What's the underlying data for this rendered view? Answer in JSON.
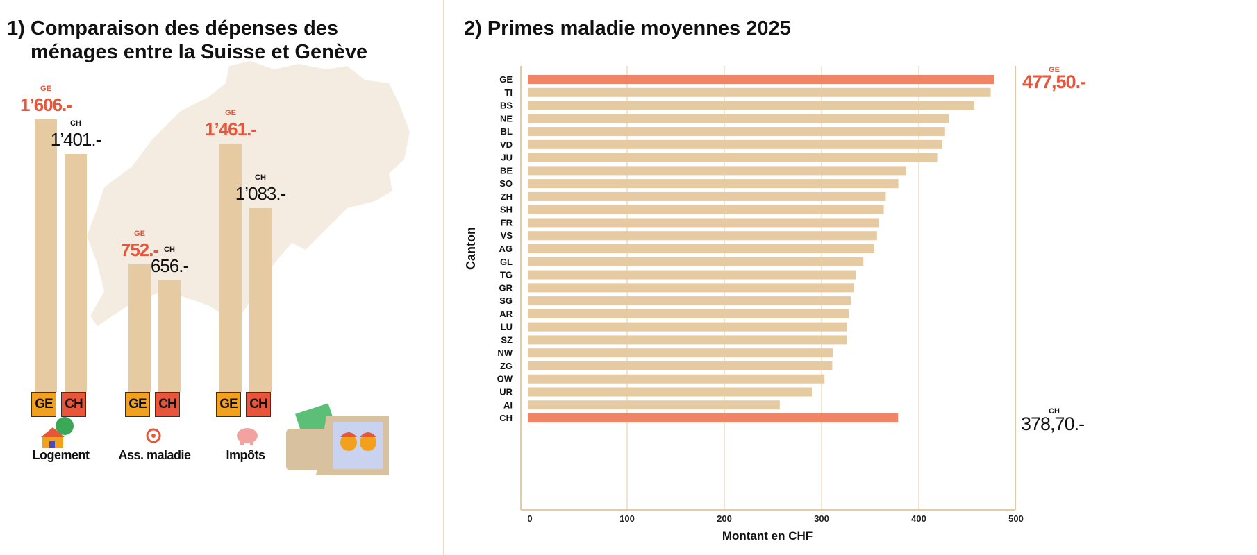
{
  "chart_data": [
    {
      "type": "bar",
      "title": "1) Comparaison des dépenses des ménages entre la Suisse et Genève",
      "title_lines": [
        "1) Comparaison des dépenses des",
        "ménages entre la Suisse et Genève"
      ],
      "categories": [
        "Logement",
        "Ass. maladie",
        "Impôts"
      ],
      "series": [
        {
          "name": "GE",
          "values": [
            1606,
            752,
            1461
          ],
          "labels": [
            "1’606.-",
            "752.-",
            "1’461.-"
          ],
          "color": "#f2a11f"
        },
        {
          "name": "CH",
          "values": [
            1401,
            656,
            1083
          ],
          "labels": [
            "1’401.-",
            "656.-",
            "1’083.-"
          ],
          "color": "#e8553a"
        }
      ],
      "series_value_color": {
        "GE": "#e8553a",
        "CH": "#111111"
      },
      "bar_color": "#e6caa2",
      "icons": [
        "house-icon",
        "stethoscope-icon",
        "piggy-bank-icon",
        "wallet-icon"
      ]
    },
    {
      "type": "bar",
      "orientation": "horizontal",
      "title": "2) Primes maladie moyennes 2025",
      "xlabel": "Montant en CHF",
      "ylabel": "Canton",
      "xlim": [
        0,
        500
      ],
      "xticks": [
        0,
        100,
        200,
        300,
        400,
        500
      ],
      "grid": true,
      "categories": [
        "GE",
        "TI",
        "BS",
        "NE",
        "BL",
        "VD",
        "JU",
        "BE",
        "SO",
        "ZH",
        "SH",
        "FR",
        "VS",
        "AG",
        "GL",
        "TG",
        "GR",
        "SG",
        "AR",
        "LU",
        "SZ",
        "NW",
        "ZG",
        "OW",
        "UR",
        "AI",
        "CH"
      ],
      "values": [
        477.5,
        474,
        457,
        431,
        427,
        424,
        419,
        387,
        379,
        366,
        364,
        359,
        357,
        354,
        343,
        335,
        333,
        330,
        328,
        326,
        326,
        312,
        311,
        303,
        290,
        257,
        378.7
      ],
      "highlight": [
        "GE",
        "CH"
      ],
      "bar_color": "#e6caa2",
      "highlight_color": "#ef8466",
      "annotations": [
        {
          "tag": "GE",
          "text": "477,50.-",
          "color": "#e8553a"
        },
        {
          "tag": "CH",
          "text": "378,70.-",
          "color": "#111111"
        }
      ]
    }
  ]
}
